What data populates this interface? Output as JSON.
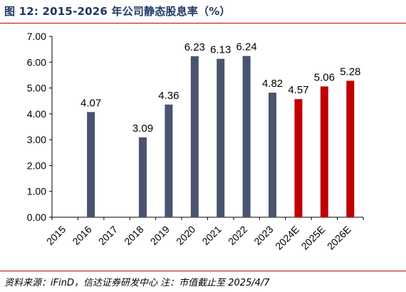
{
  "figure": {
    "title": "图 12:  2015-2026 年公司静态股息率（%）",
    "source": "资料来源：iFinD，信达证券研发中心 注：市值截止至 2025/4/7"
  },
  "chart_data": {
    "type": "bar",
    "title": "",
    "xlabel": "",
    "ylabel": "",
    "categories": [
      "2015",
      "2016",
      "2017",
      "2018",
      "2019",
      "2020",
      "2021",
      "2022",
      "2023",
      "2024E",
      "2025E",
      "2026E"
    ],
    "values": [
      null,
      4.07,
      null,
      3.09,
      4.36,
      6.23,
      6.13,
      6.24,
      4.82,
      4.57,
      5.06,
      5.28
    ],
    "data_labels": [
      "",
      "4.07",
      "",
      "3.09",
      "4.36",
      "6.23",
      "6.13",
      "6.24",
      "4.82",
      "4.57",
      "5.06",
      "5.28"
    ],
    "bar_colors": [
      "#4a5470",
      "#4a5470",
      "#4a5470",
      "#4a5470",
      "#4a5470",
      "#4a5470",
      "#4a5470",
      "#4a5470",
      "#4a5470",
      "#c00000",
      "#c00000",
      "#c00000"
    ],
    "ylim": [
      0,
      7
    ],
    "yticks": [
      0,
      1,
      2,
      3,
      4,
      5,
      6,
      7
    ],
    "ytick_labels": [
      "0.00",
      "1.00",
      "2.00",
      "3.00",
      "4.00",
      "5.00",
      "6.00",
      "7.00"
    ],
    "xtick_rotation_deg": -45,
    "grid": false,
    "legend": "none",
    "colors": {
      "actual": "#4a5470",
      "forecast": "#c00000",
      "accent": "#c00000",
      "title": "#1f3864"
    }
  }
}
